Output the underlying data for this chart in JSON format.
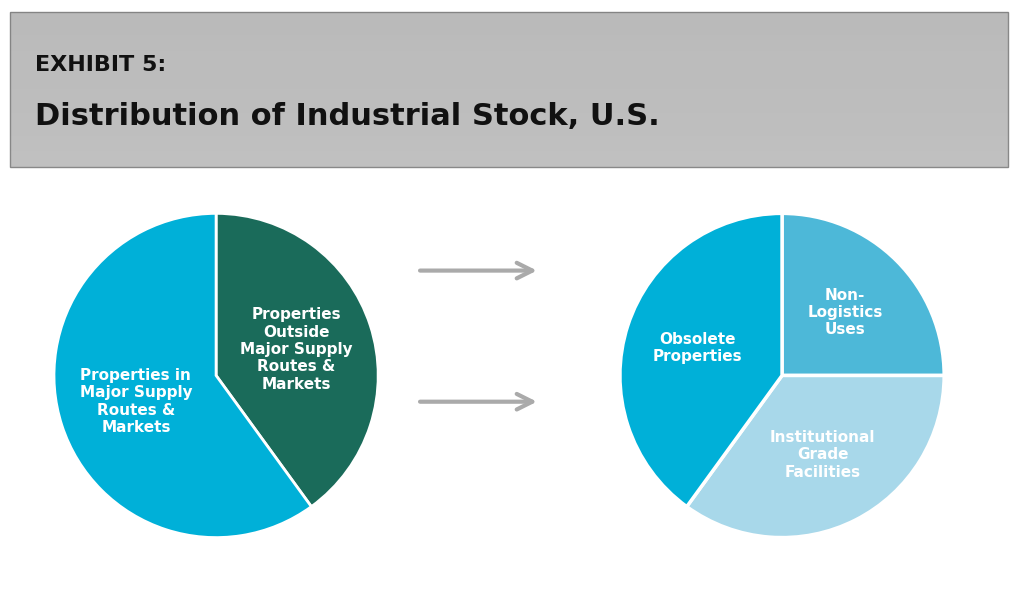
{
  "title_line1": "EXHIBIT 5:",
  "title_line2": "Distribution of Industrial Stock, U.S.",
  "header_bg": "#b0b0b0",
  "background_color": "#ffffff",
  "pie1_sizes": [
    40,
    60
  ],
  "pie1_colors": [
    "#1a6b5a",
    "#00b0d8"
  ],
  "pie1_labels": [
    "Properties\nOutside\nMajor Supply\nRoutes &\nMarkets",
    "Properties in\nMajor Supply\nRoutes &\nMarkets"
  ],
  "pie1_startangle": 90,
  "pie1_explode": [
    0,
    0
  ],
  "pie2_sizes": [
    25,
    35,
    40
  ],
  "pie2_colors": [
    "#4db8d8",
    "#a8d8ea",
    "#00b0d8"
  ],
  "pie2_labels": [
    "Non-\nLogistics\nUses",
    "Institutional\nGrade\nFacilities",
    "Obsolete\nProperties"
  ],
  "pie2_startangle": 90,
  "arrow_color": "#a0a0a0",
  "label_fontsize": 11,
  "label_color_dark": "#ffffff",
  "title_fontsize1": 16,
  "title_fontsize2": 22
}
